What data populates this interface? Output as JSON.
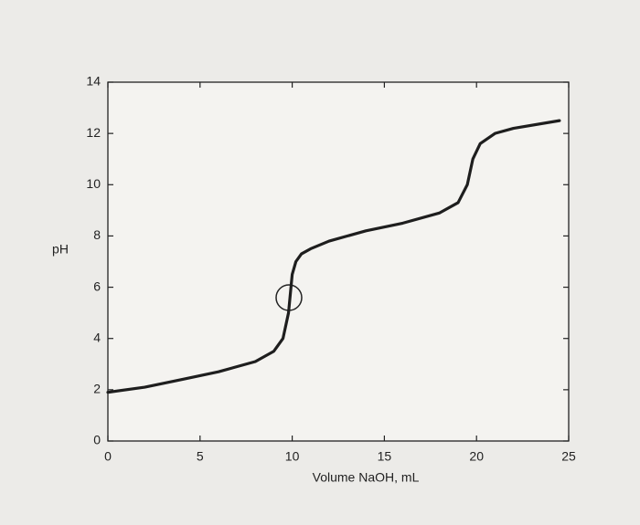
{
  "chart_data": {
    "type": "line",
    "x_label": "Volume NaOH, mL",
    "y_label": "pH",
    "x": [
      0,
      2,
      4,
      6,
      8,
      9,
      9.5,
      9.8,
      10,
      10.2,
      10.5,
      11,
      12,
      14,
      16,
      18,
      19,
      19.5,
      19.8,
      20.2,
      21,
      22,
      24.5
    ],
    "values": [
      1.9,
      2.1,
      2.4,
      2.7,
      3.1,
      3.5,
      4.0,
      5.0,
      6.5,
      7.0,
      7.3,
      7.5,
      7.8,
      8.2,
      8.5,
      8.9,
      9.3,
      10.0,
      11.0,
      11.6,
      12.0,
      12.2,
      12.5
    ],
    "color": "#1e1e1e",
    "xlim": [
      0,
      25
    ],
    "xticks": [
      0,
      5,
      10,
      15,
      20,
      25
    ],
    "ylim": [
      0,
      14
    ],
    "yticks": [
      0,
      2,
      4,
      6,
      8,
      10,
      12,
      14
    ]
  }
}
